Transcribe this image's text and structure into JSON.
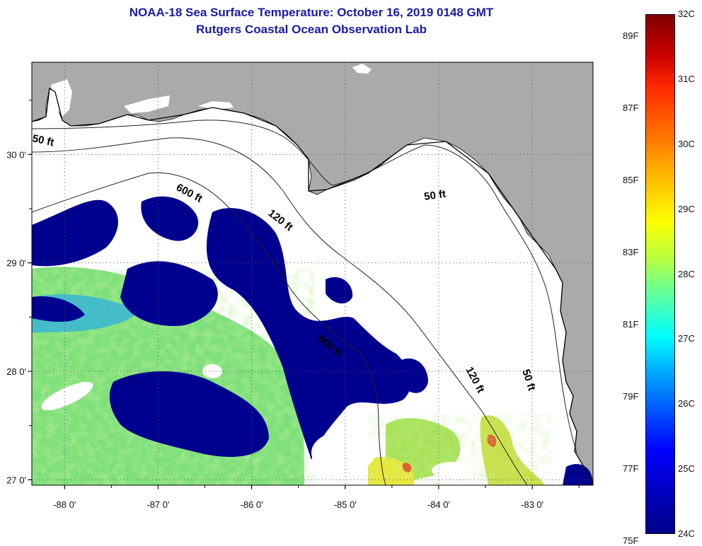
{
  "title": {
    "line1": "NOAA-18 Sea Surface Temperature:  October 16, 2019 0148 GMT",
    "line2": "Rutgers Coastal Ocean Observation Lab"
  },
  "axes": {
    "x_ticks": [
      "-88 0'",
      "-87 0'",
      "-86 0'",
      "-85 0'",
      "-84 0'",
      "-83 0'"
    ],
    "x_values": [
      -88,
      -87,
      -86,
      -85,
      -84,
      -83
    ],
    "y_ticks": [
      "30 0'",
      "29 0'",
      "28 0'",
      "27 0'"
    ],
    "y_values": [
      30,
      29,
      28,
      27
    ],
    "lon_range": [
      -88.35,
      -82.35
    ],
    "lat_range": [
      26.95,
      30.85
    ],
    "grid": "dotted"
  },
  "contours": [
    {
      "label": "50 ft"
    },
    {
      "label": "600 ft"
    },
    {
      "label": "120 ft"
    },
    {
      "label": "50 ft"
    },
    {
      "label": "600 ft"
    },
    {
      "label": "120 ft"
    },
    {
      "label": "50 ft"
    }
  ],
  "colorbar": {
    "celsius_labels": [
      "32C",
      "31C",
      "30C",
      "29C",
      "28C",
      "27C",
      "26C",
      "25C",
      "24C"
    ],
    "celsius_values": [
      32,
      31,
      30,
      29,
      28,
      27,
      26,
      25,
      24
    ],
    "fahrenheit_labels": [
      "89F",
      "87F",
      "85F",
      "83F",
      "81F",
      "79F",
      "77F",
      "75F"
    ],
    "fahrenheit_values": [
      89,
      87,
      85,
      83,
      81,
      79,
      77,
      75
    ],
    "range_c": [
      24,
      32
    ]
  },
  "colors": {
    "land": "#aaaaaa",
    "cloud": "#ffffff",
    "cold_cloud": "#00008f",
    "ocean_warm": "#9be85f",
    "coast": "#000000",
    "title": "#1a1aa8"
  }
}
